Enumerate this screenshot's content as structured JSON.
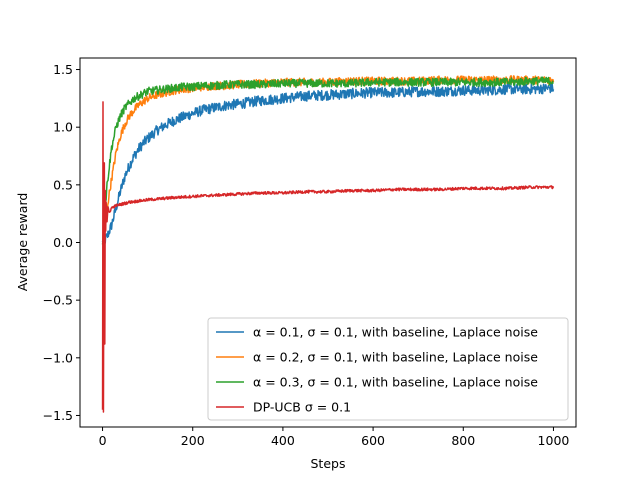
{
  "chart_data": {
    "type": "line",
    "title": "",
    "xlabel": "Steps",
    "ylabel": "Average reward",
    "xlim": [
      -50,
      1050
    ],
    "ylim": [
      -1.6,
      1.6
    ],
    "xticks": [
      0,
      200,
      400,
      600,
      800,
      1000
    ],
    "yticks": [
      -1.5,
      -1.0,
      -0.5,
      0.0,
      0.5,
      1.0,
      1.5
    ],
    "xtick_labels": [
      "0",
      "200",
      "400",
      "600",
      "800",
      "1000"
    ],
    "ytick_labels": [
      "−1.5",
      "−1.0",
      "−0.5",
      "0.0",
      "0.5",
      "1.0",
      "1.5"
    ],
    "grid": false,
    "legend_position": "lower right",
    "series": [
      {
        "name": "α = 0.1, σ = 0.1, with baseline, Laplace noise",
        "color": "#1f77b4",
        "x": [
          0,
          5,
          10,
          20,
          30,
          40,
          50,
          60,
          70,
          80,
          90,
          100,
          120,
          140,
          160,
          180,
          200,
          225,
          250,
          275,
          300,
          350,
          400,
          450,
          500,
          550,
          600,
          650,
          700,
          750,
          800,
          850,
          900,
          950,
          1000
        ],
        "values": [
          0.0,
          0.02,
          0.05,
          0.15,
          0.3,
          0.45,
          0.58,
          0.67,
          0.75,
          0.81,
          0.86,
          0.9,
          0.97,
          1.02,
          1.06,
          1.09,
          1.12,
          1.15,
          1.17,
          1.19,
          1.2,
          1.23,
          1.25,
          1.27,
          1.28,
          1.29,
          1.3,
          1.3,
          1.31,
          1.31,
          1.32,
          1.32,
          1.33,
          1.33,
          1.34
        ]
      },
      {
        "name": "α = 0.2, σ = 0.1, with baseline, Laplace noise",
        "color": "#ff7f0e",
        "x": [
          0,
          5,
          10,
          20,
          30,
          40,
          50,
          60,
          70,
          80,
          90,
          100,
          120,
          140,
          160,
          180,
          200,
          225,
          250,
          275,
          300,
          350,
          400,
          450,
          500,
          550,
          600,
          650,
          700,
          750,
          800,
          850,
          900,
          950,
          1000
        ],
        "values": [
          0.0,
          0.1,
          0.3,
          0.55,
          0.78,
          0.93,
          1.03,
          1.1,
          1.15,
          1.19,
          1.22,
          1.25,
          1.28,
          1.3,
          1.32,
          1.33,
          1.34,
          1.35,
          1.36,
          1.36,
          1.37,
          1.38,
          1.39,
          1.39,
          1.39,
          1.4,
          1.4,
          1.4,
          1.4,
          1.41,
          1.41,
          1.41,
          1.41,
          1.41,
          1.41
        ]
      },
      {
        "name": "α = 0.3, σ = 0.1, with baseline, Laplace noise",
        "color": "#2ca02c",
        "x": [
          0,
          5,
          10,
          20,
          30,
          40,
          50,
          60,
          70,
          80,
          90,
          100,
          120,
          140,
          160,
          180,
          200,
          225,
          250,
          275,
          300,
          350,
          400,
          450,
          500,
          550,
          600,
          650,
          700,
          750,
          800,
          850,
          900,
          950,
          1000
        ],
        "values": [
          0.0,
          0.25,
          0.5,
          0.82,
          1.0,
          1.1,
          1.17,
          1.21,
          1.25,
          1.27,
          1.29,
          1.31,
          1.32,
          1.33,
          1.34,
          1.35,
          1.35,
          1.36,
          1.36,
          1.37,
          1.37,
          1.37,
          1.38,
          1.38,
          1.38,
          1.38,
          1.39,
          1.39,
          1.39,
          1.39,
          1.39,
          1.39,
          1.39,
          1.4,
          1.4
        ]
      },
      {
        "name": "DP-UCB σ = 0.1",
        "color": "#d62728",
        "x": [
          0,
          1,
          2,
          3,
          4,
          5,
          6,
          7,
          8,
          10,
          12,
          15,
          20,
          30,
          40,
          50,
          60,
          80,
          100,
          130,
          160,
          200,
          250,
          300,
          350,
          400,
          450,
          500,
          550,
          600,
          650,
          700,
          750,
          800,
          850,
          900,
          950,
          1000
        ],
        "values": [
          -1.45,
          1.22,
          -1.47,
          0.2,
          0.69,
          -0.88,
          0.45,
          0.1,
          0.35,
          0.18,
          0.3,
          0.26,
          0.3,
          0.32,
          0.33,
          0.34,
          0.35,
          0.36,
          0.37,
          0.38,
          0.39,
          0.4,
          0.41,
          0.42,
          0.43,
          0.43,
          0.44,
          0.44,
          0.45,
          0.45,
          0.46,
          0.46,
          0.46,
          0.47,
          0.47,
          0.47,
          0.48,
          0.48
        ]
      }
    ]
  }
}
